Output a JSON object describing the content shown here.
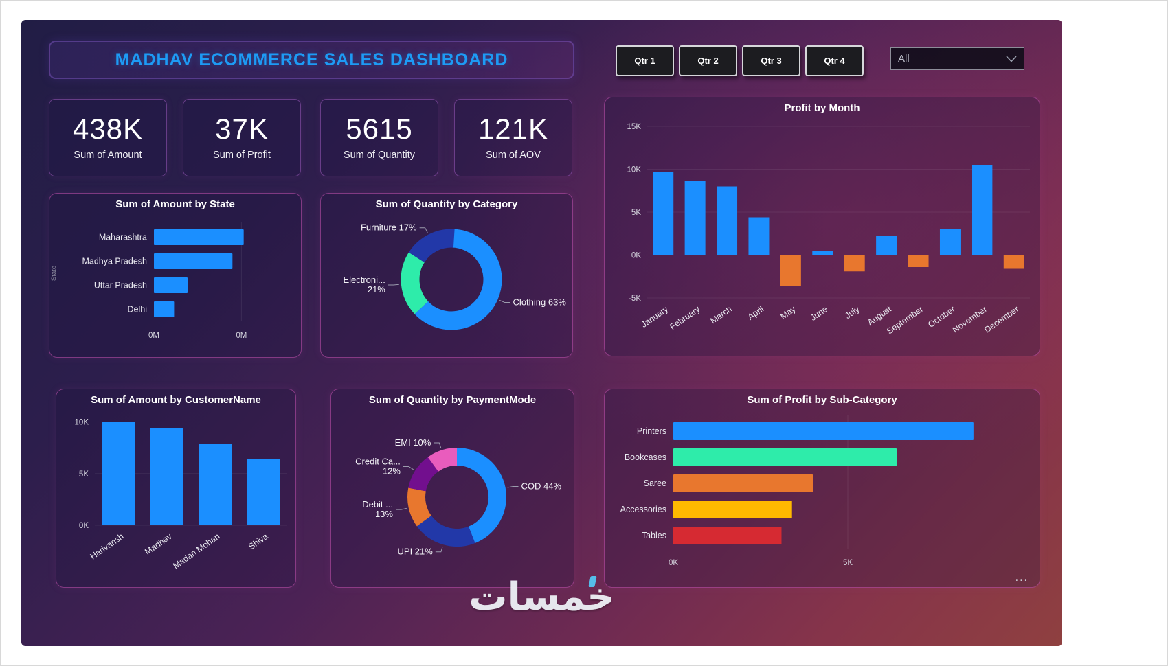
{
  "title": "MADHAV ECOMMERCE SALES DASHBOARD",
  "theme": {
    "title_blue": "#1D9BF5",
    "positive_bar": "#1B8FFF",
    "negative_bar": "#E8772E",
    "panel_border_pink": "#D75ABE"
  },
  "filters": {
    "quarters": [
      "Qtr 1",
      "Qtr 2",
      "Qtr 3",
      "Qtr 4"
    ],
    "dropdown_value": "All"
  },
  "kpis": [
    {
      "value": "438K",
      "label": "Sum of Amount"
    },
    {
      "value": "37K",
      "label": "Sum of Profit"
    },
    {
      "value": "5615",
      "label": "Sum of Quantity"
    },
    {
      "value": "121K",
      "label": "Sum of AOV"
    }
  ],
  "watermark": "خمسات",
  "chart_data": [
    {
      "id": "amount-by-state",
      "type": "bar",
      "title": "Sum of Amount by State",
      "categories": [
        "Maharashtra",
        "Madhya Pradesh",
        "Uttar Pradesh",
        "Delhi"
      ],
      "values": [
        0.2,
        0.175,
        0.075,
        0.045
      ],
      "unit": "M",
      "xlim": [
        0,
        0.3
      ],
      "xticks": [
        {
          "value": 0,
          "label": "0M"
        },
        {
          "value": 0.195,
          "label": "0M"
        }
      ],
      "ylabel": "State",
      "color": "#1B8FFF",
      "legend": false
    },
    {
      "id": "quantity-by-category",
      "type": "donut",
      "title": "Sum of Quantity by Category",
      "segments": [
        {
          "name": "Clothing",
          "pct": 63,
          "color": "#1B8FFF",
          "label": "Clothing 63%"
        },
        {
          "name": "Electronics",
          "pct": 21,
          "color": "#2EECAA",
          "label": "Electroni...\n21%"
        },
        {
          "name": "Furniture",
          "pct": 17,
          "color": "#2238A8",
          "label": "Furniture 17%"
        }
      ]
    },
    {
      "id": "profit-by-month",
      "type": "column",
      "title": "Profit by Month",
      "categories": [
        "January",
        "February",
        "March",
        "April",
        "May",
        "June",
        "July",
        "August",
        "September",
        "October",
        "November",
        "December"
      ],
      "values": [
        9.7,
        8.6,
        8.0,
        4.4,
        -3.6,
        0.5,
        -1.9,
        2.2,
        -1.4,
        3.0,
        10.5,
        -1.6
      ],
      "unit": "K",
      "ylim": [
        -5,
        15
      ],
      "yticks": [
        {
          "value": 15,
          "label": "15K"
        },
        {
          "value": 10,
          "label": "10K"
        },
        {
          "value": 5,
          "label": "5K"
        },
        {
          "value": 0,
          "label": "0K"
        },
        {
          "value": -5,
          "label": "-5K"
        }
      ],
      "color_positive": "#1B8FFF",
      "color_negative": "#E8772E"
    },
    {
      "id": "amount-by-customername",
      "type": "column",
      "title": "Sum of Amount by CustomerName",
      "categories": [
        "Harivansh",
        "Madhav",
        "Madan Mohan",
        "Shiva"
      ],
      "values": [
        10.0,
        9.4,
        7.9,
        6.4
      ],
      "unit": "K",
      "ylim": [
        0,
        10.5
      ],
      "yticks": [
        {
          "value": 10,
          "label": "10K"
        },
        {
          "value": 5,
          "label": "5K"
        },
        {
          "value": 0,
          "label": "0K"
        }
      ],
      "color_positive": "#1B8FFF",
      "color_negative": "#E8772E"
    },
    {
      "id": "quantity-by-paymentmode",
      "type": "donut",
      "title": "Sum of Quantity by PaymentMode",
      "segments": [
        {
          "name": "COD",
          "pct": 44,
          "color": "#1B8FFF",
          "label": "COD 44%"
        },
        {
          "name": "UPI",
          "pct": 21,
          "color": "#2238A8",
          "label": "UPI 21%"
        },
        {
          "name": "Debit Card",
          "pct": 13,
          "color": "#E8772E",
          "label": "Debit ...\n13%"
        },
        {
          "name": "Credit Card",
          "pct": 12,
          "color": "#720F8E",
          "label": "Credit Ca...\n12%"
        },
        {
          "name": "EMI",
          "pct": 10,
          "color": "#E95CBD",
          "label": "EMI 10%"
        }
      ]
    },
    {
      "id": "profit-by-subcategory",
      "type": "bar",
      "title": "Sum of Profit by Sub-Category",
      "categories": [
        "Printers",
        "Bookcases",
        "Saree",
        "Accessories",
        "Tables"
      ],
      "values": [
        8.6,
        6.4,
        4.0,
        3.4,
        3.1
      ],
      "unit": "K",
      "xlim": [
        0,
        10
      ],
      "xticks": [
        {
          "value": 0,
          "label": "0K"
        },
        {
          "value": 5,
          "label": "5K"
        }
      ],
      "bar_colors": [
        "#1B8FFF",
        "#2EECAA",
        "#E8772E",
        "#FFB900",
        "#D62A32"
      ],
      "more_options": "..."
    }
  ]
}
